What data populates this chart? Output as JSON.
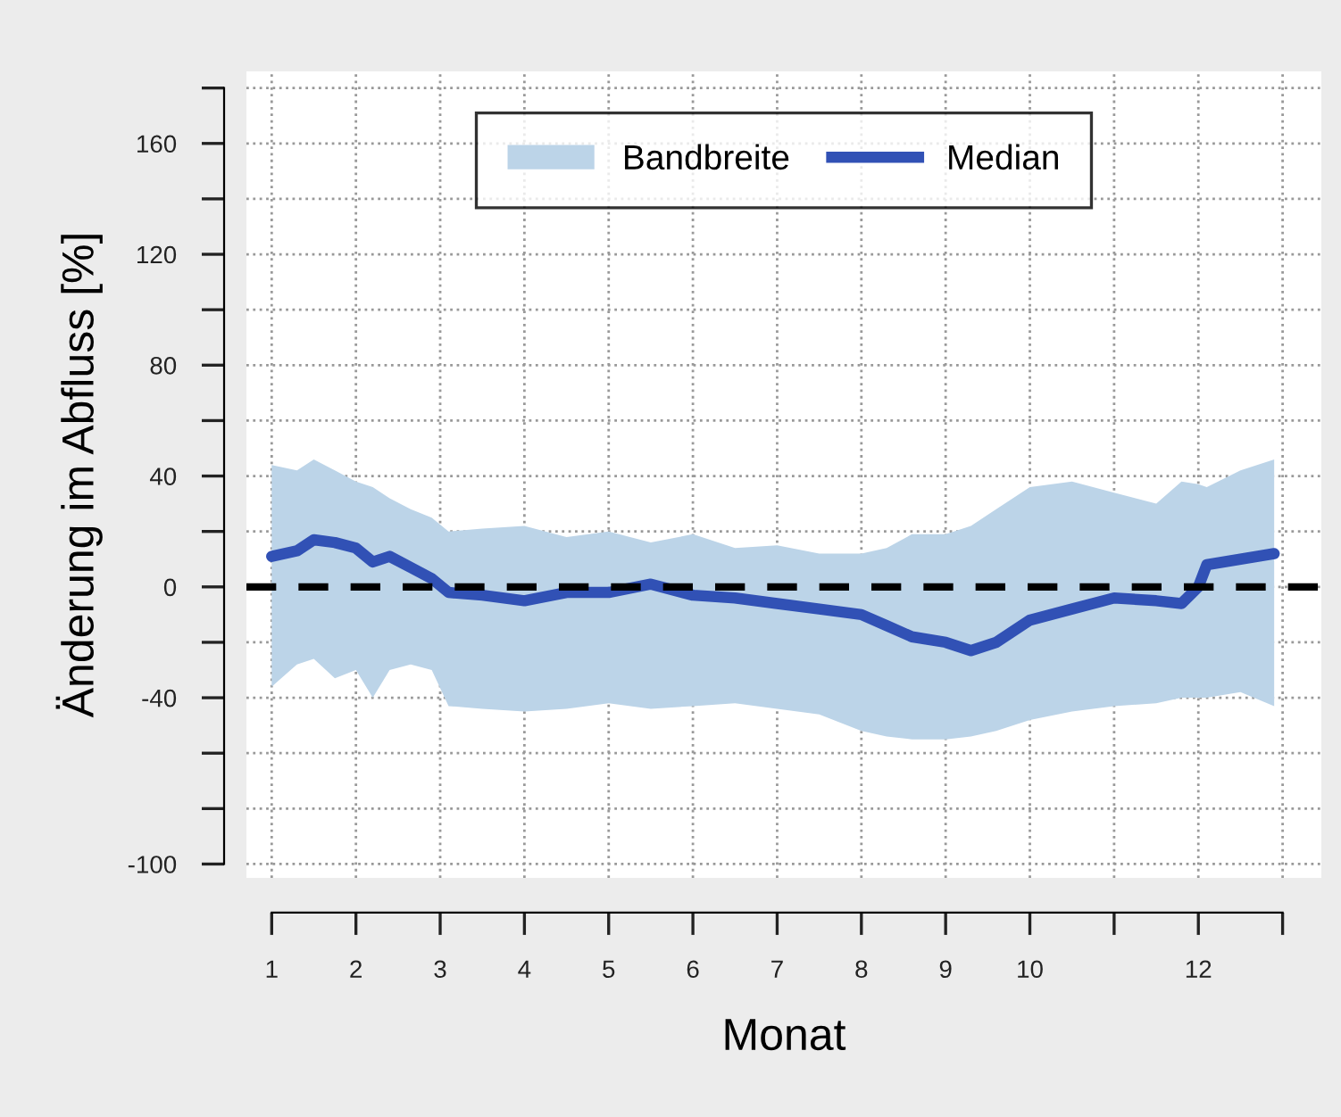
{
  "chart_data": {
    "type": "line",
    "xlabel": "Monat",
    "ylabel": "Änderung im Abfluss [%]",
    "x": [
      1,
      1.3,
      1.5,
      1.75,
      2.0,
      2.2,
      2.4,
      2.65,
      2.9,
      3.1,
      3.5,
      4.0,
      4.5,
      5.0,
      5.5,
      6.0,
      6.5,
      7.0,
      7.5,
      8.0,
      8.3,
      8.6,
      9.0,
      9.3,
      9.6,
      10.0,
      10.5,
      11.0,
      11.5,
      11.8,
      12.0,
      12.1,
      12.5,
      12.9
    ],
    "series": [
      {
        "name": "Bandbreite",
        "color": "#bcd4e8",
        "values": [
          null,
          null,
          null,
          null,
          null,
          null,
          null,
          null,
          null,
          null,
          null,
          null,
          null,
          null,
          null,
          null,
          null,
          null,
          null,
          null,
          null,
          null,
          null,
          null,
          null,
          null,
          null,
          null,
          null,
          null,
          null,
          null,
          null,
          null
        ],
        "lower": [
          -36,
          -28,
          -26,
          -33,
          -30,
          -40,
          -30,
          -28,
          -30,
          -43,
          -44,
          -45,
          -44,
          -42,
          -44,
          -43,
          -42,
          -44,
          -46,
          -52,
          -54,
          -55,
          -55,
          -54,
          -52,
          -48,
          -45,
          -43,
          -42,
          -40,
          -40,
          -40,
          -38,
          -43
        ],
        "upper": [
          44,
          42,
          46,
          42,
          38,
          36,
          32,
          28,
          25,
          20,
          21,
          22,
          18,
          20,
          16,
          19,
          14,
          15,
          12,
          12,
          14,
          19,
          19,
          22,
          28,
          36,
          38,
          34,
          30,
          38,
          37,
          36,
          42,
          46
        ]
      },
      {
        "name": "Median",
        "color": "#3151b5",
        "values": [
          11,
          13,
          17,
          16,
          14,
          9,
          11,
          7,
          3,
          -2,
          -3,
          -5,
          -2,
          -2,
          1,
          -3,
          -4,
          -6,
          -8,
          -10,
          -14,
          -18,
          -20,
          -23,
          -20,
          -12,
          -8,
          -4,
          -5,
          -6,
          0,
          8,
          10,
          12
        ]
      }
    ],
    "xlim": [
      0.7,
      13.46
    ],
    "ylim": [
      -105,
      186
    ],
    "xticks": [
      1,
      2,
      3,
      4,
      5,
      6,
      7,
      8,
      9,
      10,
      {
        "value": 11,
        "label": null
      },
      12,
      {
        "value": 13,
        "label": null
      }
    ],
    "yticks": [
      -100,
      {
        "value": -80,
        "label": null
      },
      {
        "value": -60,
        "label": null
      },
      -40,
      {
        "value": -20,
        "label": null
      },
      0,
      {
        "value": 20,
        "label": null
      },
      40,
      {
        "value": 60,
        "label": null
      },
      80,
      {
        "value": 100,
        "label": null
      },
      120,
      {
        "value": 140,
        "label": null
      },
      160,
      {
        "value": 180,
        "label": null
      }
    ],
    "ref_lines": [
      {
        "axis": "y",
        "value": 0,
        "label": null,
        "color": "#000000",
        "line_style": "dashed"
      }
    ],
    "grid": true,
    "legend": "top",
    "marker": "none",
    "line_style": "solid"
  }
}
